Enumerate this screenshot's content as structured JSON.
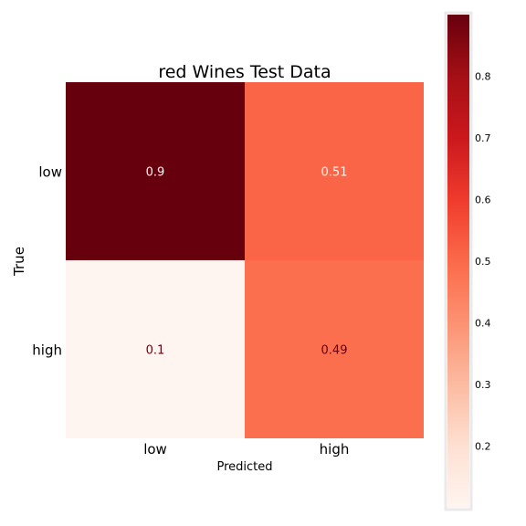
{
  "chart_data": {
    "type": "heatmap",
    "title": "red Wines Test Data",
    "xlabel": "Predicted",
    "ylabel": "True",
    "x_categories": [
      "low",
      "high"
    ],
    "y_categories": [
      "low",
      "high"
    ],
    "values": [
      [
        0.9,
        0.51
      ],
      [
        0.1,
        0.49
      ]
    ],
    "value_labels": [
      [
        "0.9",
        "0.51"
      ],
      [
        "0.1",
        "0.49"
      ]
    ],
    "colormap": "Reds",
    "colorbar": {
      "range": [
        0.1,
        0.9
      ],
      "ticks": [
        0.2,
        0.3,
        0.4,
        0.5,
        0.6,
        0.7,
        0.8
      ],
      "tick_labels": [
        "0.2",
        "0.3",
        "0.4",
        "0.5",
        "0.6",
        "0.7",
        "0.8"
      ]
    }
  }
}
